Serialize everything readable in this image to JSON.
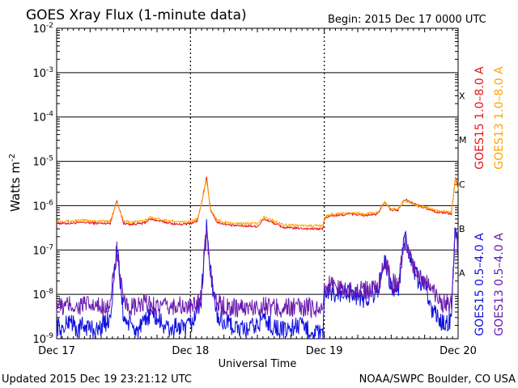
{
  "chart_data": {
    "type": "line",
    "title": "GOES Xray Flux (1-minute data)",
    "begin": "Begin:  2015 Dec 17 0000 UTC",
    "ylabel_main": "Watts m",
    "ylabel_sup": "-2",
    "xlabel": "Universal Time",
    "updated": "Updated 2015 Dec 19 23:21:12 UTC",
    "credit": "NOAA/SWPC Boulder, CO USA",
    "y_scale": "log",
    "ylim": [
      1e-09,
      0.01
    ],
    "grid_lines_at": [
      0.001,
      0.0001,
      1e-05,
      1e-06,
      1e-07,
      1e-08
    ],
    "xlim_days": [
      0,
      3
    ],
    "x_ticks": [
      {
        "day": 0,
        "label": "Dec 17"
      },
      {
        "day": 1,
        "label": "Dec 18"
      },
      {
        "day": 2,
        "label": "Dec 19"
      },
      {
        "day": 3,
        "label": "Dec 20"
      }
    ],
    "y_ticks": [
      {
        "base": "10",
        "exp": "-2",
        "value": 0.01
      },
      {
        "base": "10",
        "exp": "-3",
        "value": 0.001
      },
      {
        "base": "10",
        "exp": "-4",
        "value": 0.0001
      },
      {
        "base": "10",
        "exp": "-5",
        "value": 1e-05
      },
      {
        "base": "10",
        "exp": "-6",
        "value": 1e-06
      },
      {
        "base": "10",
        "exp": "-7",
        "value": 1e-07
      },
      {
        "base": "10",
        "exp": "-8",
        "value": 1e-08
      },
      {
        "base": "10",
        "exp": "-9",
        "value": 1e-09
      }
    ],
    "flare_classes": [
      {
        "label": "X",
        "value": 0.0001
      },
      {
        "label": "M",
        "value": 1e-05
      },
      {
        "label": "C",
        "value": 1e-06
      },
      {
        "label": "B",
        "value": 1e-07
      },
      {
        "label": "A",
        "value": 1e-08
      }
    ],
    "legend": [
      {
        "label": "GOES15 1.0–8.0 A",
        "color": "#e8141b"
      },
      {
        "label": "GOES13 1.0–8.0 A",
        "color": "#ffa500"
      },
      {
        "label": "GOES15 0.5–4.0 A",
        "color": "#1010e0"
      },
      {
        "label": "GOES13 0.5–4.0 A",
        "color": "#6a1ab0"
      }
    ],
    "series": [
      {
        "name": "GOES15 1.0–8.0 A",
        "color": "#e8141b",
        "x": [
          0,
          0.1,
          0.2,
          0.3,
          0.4,
          0.45,
          0.5,
          0.55,
          0.65,
          0.7,
          0.85,
          0.9,
          0.95,
          1.0,
          1.05,
          1.08,
          1.12,
          1.15,
          1.2,
          1.3,
          1.4,
          1.5,
          1.55,
          1.7,
          1.8,
          1.9,
          1.99,
          2.0,
          2.05,
          2.1,
          2.2,
          2.3,
          2.4,
          2.45,
          2.5,
          2.55,
          2.6,
          2.7,
          2.8,
          2.85,
          2.9,
          2.95,
          2.98,
          3.0
        ],
        "y": [
          4e-07,
          4e-07,
          4.2e-07,
          4e-07,
          4e-07,
          1.3e-06,
          4e-07,
          3.8e-07,
          4e-07,
          5e-07,
          4e-07,
          3.8e-07,
          3.8e-07,
          4e-07,
          4.5e-07,
          1e-06,
          4.5e-06,
          8e-07,
          4.2e-07,
          3.6e-07,
          3.5e-07,
          3.4e-07,
          5e-07,
          3.2e-07,
          3.1e-07,
          3e-07,
          3e-07,
          5e-07,
          6e-07,
          6e-07,
          6.5e-07,
          6e-07,
          6.5e-07,
          1.2e-06,
          8e-07,
          8e-07,
          1.4e-06,
          1e-06,
          8e-07,
          7e-07,
          7e-07,
          6.5e-07,
          4.5e-06,
          2.5e-06
        ]
      },
      {
        "name": "GOES13 1.0–8.0 A",
        "color": "#ffa500",
        "x": [
          0,
          0.1,
          0.2,
          0.3,
          0.4,
          0.45,
          0.5,
          0.55,
          0.65,
          0.7,
          0.85,
          0.9,
          0.95,
          1.0,
          1.05,
          1.08,
          1.12,
          1.15,
          1.2,
          1.3,
          1.4,
          1.5,
          1.55,
          1.7,
          1.8,
          1.9,
          1.99,
          2.0,
          2.05,
          2.1,
          2.2,
          2.3,
          2.4,
          2.45,
          2.5,
          2.55,
          2.6,
          2.7,
          2.8,
          2.85,
          2.9,
          2.95,
          2.98,
          3.0
        ],
        "y": [
          4.5e-07,
          4.5e-07,
          4.7e-07,
          4.5e-07,
          4.5e-07,
          1.2e-06,
          4.5e-07,
          4.3e-07,
          4.5e-07,
          5.5e-07,
          4.5e-07,
          4.3e-07,
          4.3e-07,
          4.5e-07,
          5e-07,
          1e-06,
          4e-06,
          8e-07,
          4.7e-07,
          4e-07,
          4e-07,
          3.9e-07,
          5.5e-07,
          3.7e-07,
          3.6e-07,
          3.5e-07,
          3.5e-07,
          5.5e-07,
          6.5e-07,
          6.5e-07,
          7e-07,
          6.5e-07,
          7e-07,
          1.2e-06,
          8.5e-07,
          8.5e-07,
          1.3e-06,
          1e-06,
          8.5e-07,
          7.5e-07,
          7.5e-07,
          7e-07,
          4e-06,
          2.3e-06
        ]
      },
      {
        "name": "GOES15 0.5–4.0 A",
        "color": "#1010e0",
        "x": [
          0,
          0.05,
          0.1,
          0.15,
          0.2,
          0.3,
          0.4,
          0.45,
          0.5,
          0.55,
          0.6,
          0.65,
          0.7,
          0.8,
          0.85,
          0.9,
          0.95,
          1.0,
          1.05,
          1.08,
          1.12,
          1.15,
          1.2,
          1.3,
          1.4,
          1.5,
          1.55,
          1.6,
          1.7,
          1.8,
          1.9,
          1.99,
          2.0,
          2.05,
          2.1,
          2.2,
          2.3,
          2.4,
          2.45,
          2.5,
          2.55,
          2.6,
          2.65,
          2.7,
          2.75,
          2.8,
          2.85,
          2.9,
          2.95,
          2.98,
          3.0
        ],
        "y": [
          2e-09,
          1.5e-09,
          3e-09,
          1.5e-09,
          2e-09,
          1.5e-09,
          3e-09,
          1.2e-07,
          3e-09,
          2e-09,
          1.5e-09,
          2e-09,
          4e-09,
          2e-09,
          1.5e-09,
          2e-09,
          1.5e-09,
          2e-09,
          4e-09,
          8e-09,
          4e-07,
          3e-08,
          3e-09,
          2e-09,
          1.5e-09,
          2e-09,
          3e-09,
          2e-09,
          1.5e-09,
          2e-09,
          1.5e-09,
          1.2e-09,
          8e-09,
          1.2e-08,
          1e-08,
          1e-08,
          8e-09,
          1.2e-08,
          6e-08,
          1.5e-08,
          1e-08,
          2e-07,
          5e-08,
          2e-08,
          1.5e-08,
          5e-09,
          3e-09,
          2e-09,
          3e-09,
          4e-07,
          1e-07
        ]
      },
      {
        "name": "GOES13 0.5–4.0 A",
        "color": "#6a1ab0",
        "x": [
          0,
          0.05,
          0.1,
          0.15,
          0.2,
          0.3,
          0.4,
          0.45,
          0.5,
          0.55,
          0.6,
          0.65,
          0.7,
          0.8,
          0.85,
          0.9,
          0.95,
          1.0,
          1.05,
          1.08,
          1.12,
          1.15,
          1.2,
          1.3,
          1.4,
          1.5,
          1.55,
          1.6,
          1.7,
          1.8,
          1.9,
          1.99,
          2.0,
          2.05,
          2.1,
          2.2,
          2.3,
          2.4,
          2.45,
          2.5,
          2.55,
          2.6,
          2.65,
          2.7,
          2.75,
          2.8,
          2.85,
          2.9,
          2.95,
          2.98,
          3.0
        ],
        "y": [
          6e-09,
          5e-09,
          6e-09,
          5e-09,
          6e-09,
          5e-09,
          6e-09,
          1e-07,
          6e-09,
          5e-09,
          5e-09,
          6e-09,
          6e-09,
          5e-09,
          5e-09,
          6e-09,
          5e-09,
          5e-09,
          6e-09,
          1e-08,
          3e-07,
          3e-08,
          6e-09,
          5e-09,
          5e-09,
          5e-09,
          6e-09,
          5e-09,
          5e-09,
          5e-09,
          5e-09,
          5e-09,
          1.2e-08,
          1.8e-08,
          1.4e-08,
          1.3e-08,
          1.2e-08,
          1.4e-08,
          6e-08,
          2e-08,
          1.5e-08,
          1.6e-07,
          6e-08,
          3e-08,
          2e-08,
          1.2e-08,
          8e-09,
          6e-09,
          6e-09,
          3e-07,
          1e-07
        ]
      }
    ]
  }
}
